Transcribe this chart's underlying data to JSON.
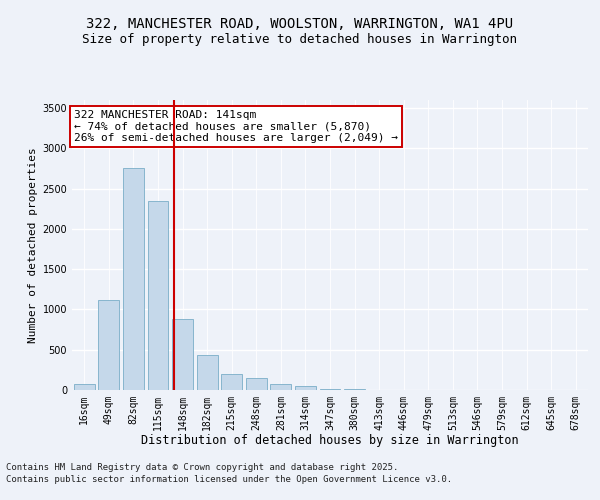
{
  "title1": "322, MANCHESTER ROAD, WOOLSTON, WARRINGTON, WA1 4PU",
  "title2": "Size of property relative to detached houses in Warrington",
  "xlabel": "Distribution of detached houses by size in Warrington",
  "ylabel": "Number of detached properties",
  "categories": [
    "16sqm",
    "49sqm",
    "82sqm",
    "115sqm",
    "148sqm",
    "182sqm",
    "215sqm",
    "248sqm",
    "281sqm",
    "314sqm",
    "347sqm",
    "380sqm",
    "413sqm",
    "446sqm",
    "479sqm",
    "513sqm",
    "546sqm",
    "579sqm",
    "612sqm",
    "645sqm",
    "678sqm"
  ],
  "values": [
    75,
    1120,
    2750,
    2350,
    880,
    430,
    195,
    145,
    75,
    45,
    18,
    7,
    3,
    2,
    1,
    1,
    0,
    0,
    0,
    0,
    0
  ],
  "bar_color": "#c5d8ea",
  "bar_edge_color": "#7aaec8",
  "vline_x_index": 4,
  "vline_color": "#cc0000",
  "annotation_text": "322 MANCHESTER ROAD: 141sqm\n← 74% of detached houses are smaller (5,870)\n26% of semi-detached houses are larger (2,049) →",
  "annotation_box_facecolor": "#ffffff",
  "annotation_box_edgecolor": "#cc0000",
  "ylim": [
    0,
    3600
  ],
  "yticks": [
    0,
    500,
    1000,
    1500,
    2000,
    2500,
    3000,
    3500
  ],
  "bg_color": "#eef2f9",
  "grid_color": "#ffffff",
  "footer1": "Contains HM Land Registry data © Crown copyright and database right 2025.",
  "footer2": "Contains public sector information licensed under the Open Government Licence v3.0.",
  "title1_fontsize": 10,
  "title2_fontsize": 9,
  "xlabel_fontsize": 8.5,
  "ylabel_fontsize": 8,
  "tick_fontsize": 7,
  "annotation_fontsize": 8,
  "footer_fontsize": 6.5
}
